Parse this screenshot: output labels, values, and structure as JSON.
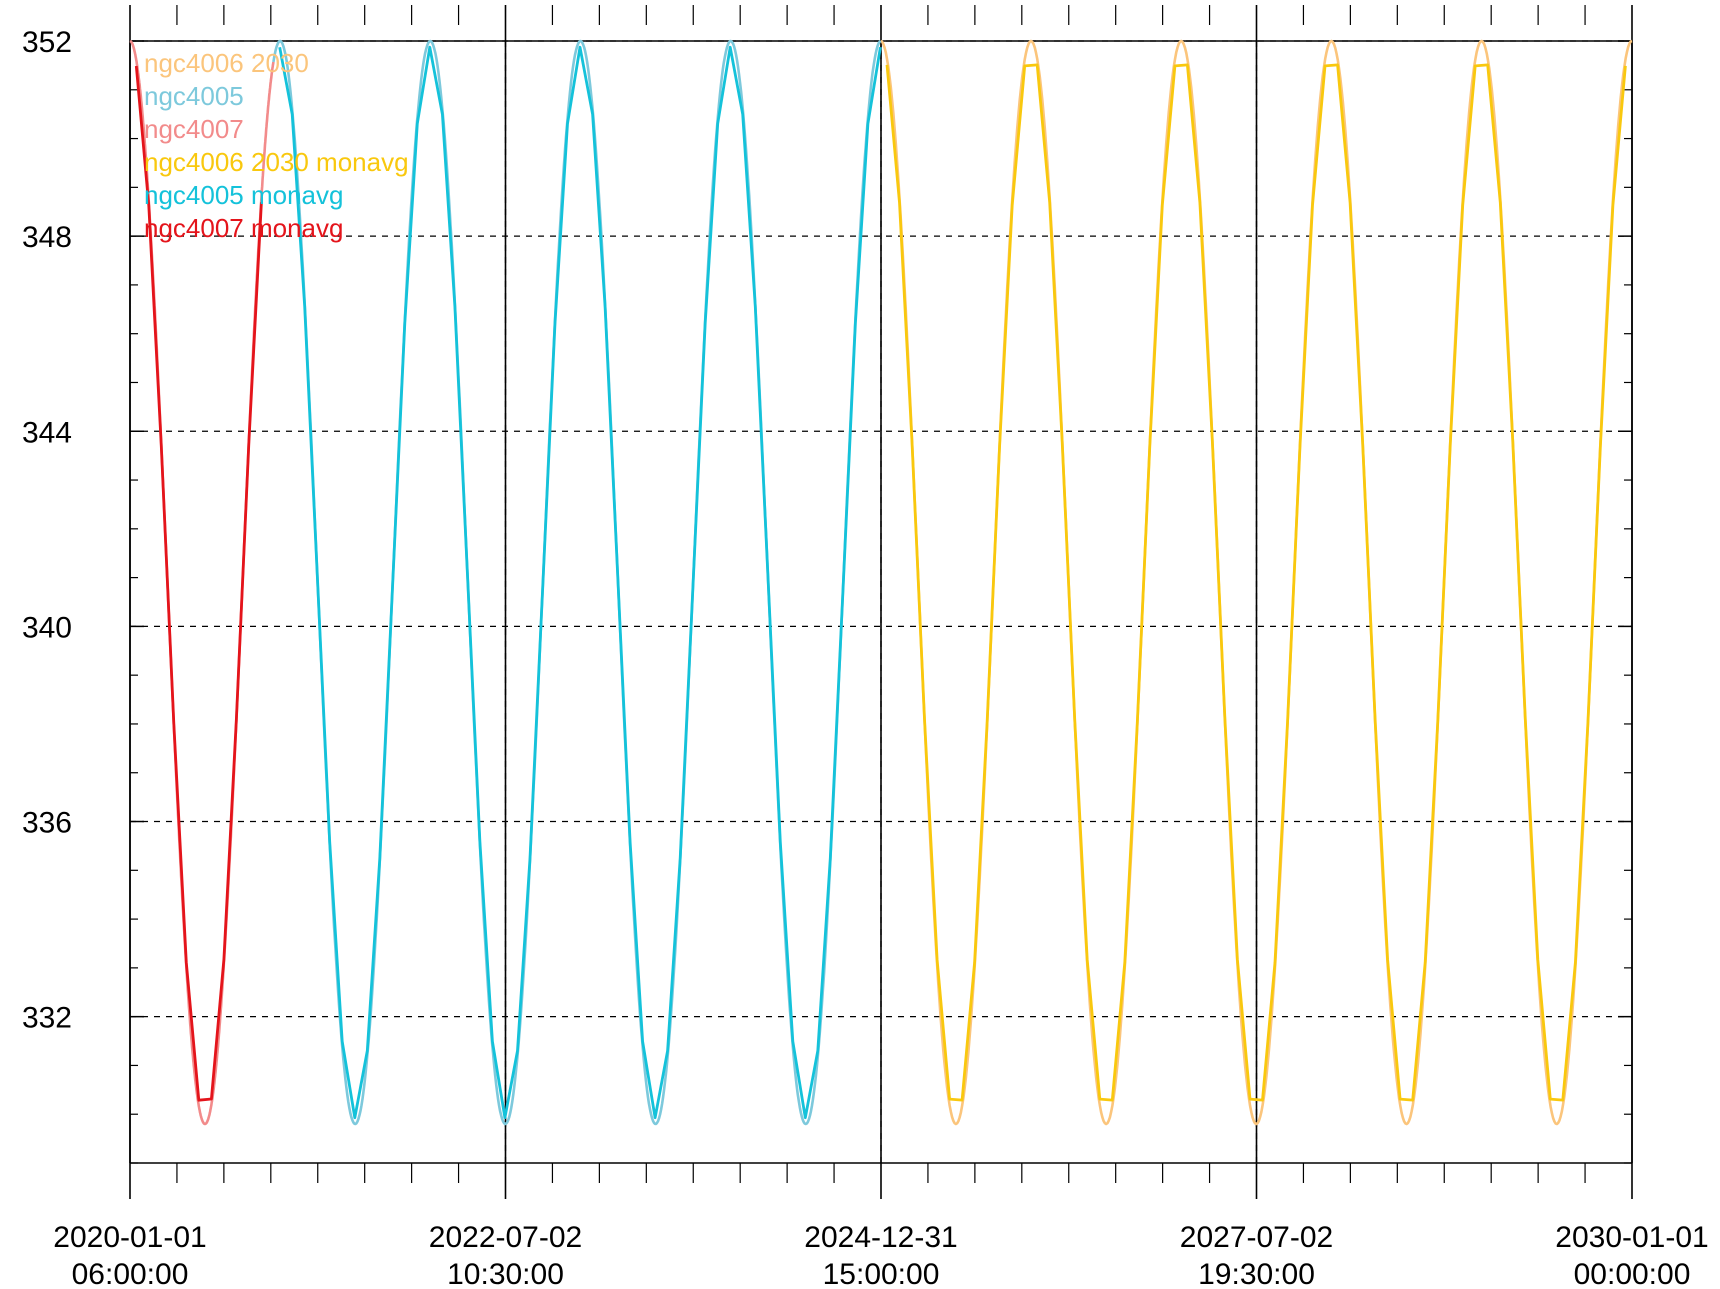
{
  "chart_data": {
    "type": "line",
    "title": "",
    "xlabel": "",
    "ylabel": "",
    "xlim": [
      "2020-01-01T06:00:00",
      "2030-01-01T00:00:00"
    ],
    "ylim": [
      329,
      352
    ],
    "grid": true,
    "legend_position": "top-left",
    "x_ticks": [
      {
        "date": "2020-01-01",
        "time": "06:00:00"
      },
      {
        "date": "2022-07-02",
        "time": "10:30:00"
      },
      {
        "date": "2024-12-31",
        "time": "15:00:00"
      },
      {
        "date": "2027-07-02",
        "time": "19:30:00"
      },
      {
        "date": "2030-01-01",
        "time": "00:00:00"
      }
    ],
    "y_ticks": [
      332,
      336,
      340,
      344,
      348,
      352
    ],
    "cycle": {
      "baseline": 340.9,
      "amplitude": 11.1,
      "period_years": 1.0,
      "crest_date": "2020-01-01"
    },
    "series": [
      {
        "name": "ngc4006 2030",
        "color": "#FBC57C",
        "kind": "smooth",
        "date_range": [
          "2024-12-31",
          "2030-01-01"
        ]
      },
      {
        "name": "ngc4005",
        "color": "#7DC9DC",
        "kind": "smooth",
        "date_range": [
          "2020-12-15",
          "2024-12-31"
        ]
      },
      {
        "name": "ngc4007",
        "color": "#F28B8B",
        "kind": "smooth",
        "date_range": [
          "2020-01-01",
          "2020-12-15"
        ]
      },
      {
        "name": "ngc4006 2030 monavg",
        "color": "#F9C80E",
        "kind": "monthly",
        "date_range": [
          "2024-12-31",
          "2030-01-01"
        ]
      },
      {
        "name": "ngc4005 monavg",
        "color": "#14C2DA",
        "kind": "monthly",
        "date_range": [
          "2020-12-15",
          "2024-12-31"
        ]
      },
      {
        "name": "ngc4007 monavg",
        "color": "#E4141B",
        "kind": "monthly",
        "date_range": [
          "2020-01-01",
          "2020-12-15"
        ]
      }
    ]
  }
}
